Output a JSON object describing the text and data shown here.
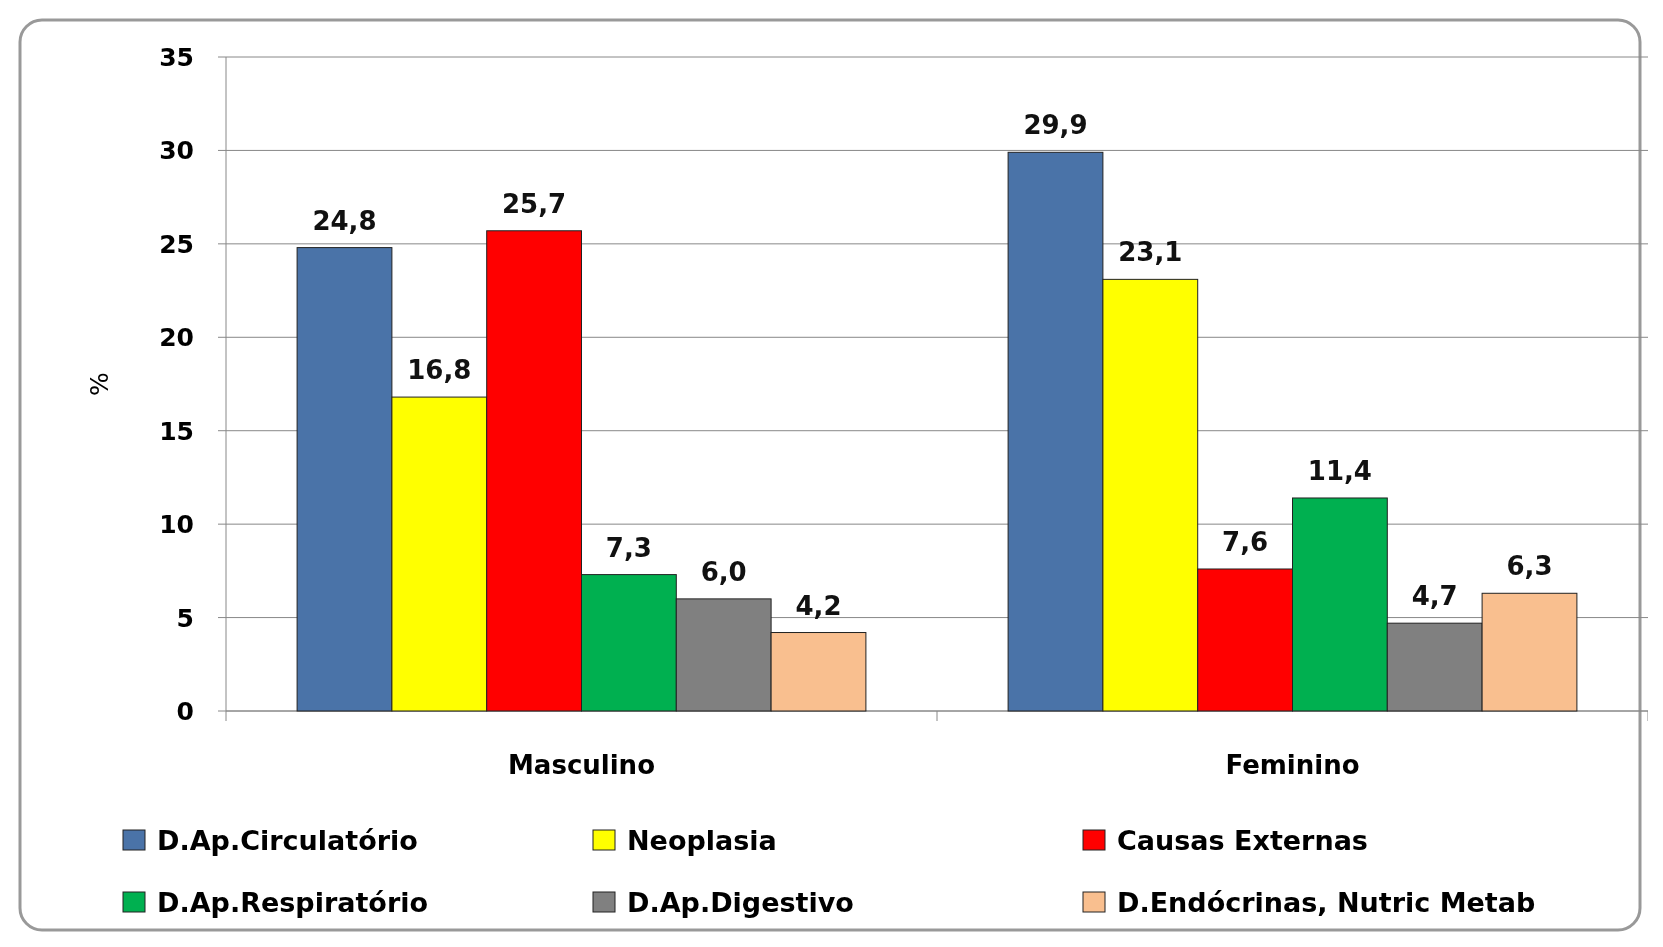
{
  "chart_data": {
    "type": "bar",
    "ylabel": "%",
    "categories": [
      "Masculino",
      "Feminino"
    ],
    "series": [
      {
        "name": "D.Ap.Circulatório",
        "color": "#4a73a8",
        "values": [
          24.8,
          29.9
        ],
        "value_labels": [
          "24,8",
          "29,9"
        ]
      },
      {
        "name": "Neoplasia",
        "color": "#ffff00",
        "values": [
          16.8,
          23.1
        ],
        "value_labels": [
          "16,8",
          "23,1"
        ]
      },
      {
        "name": "Causas Externas",
        "color": "#ff0000",
        "values": [
          25.7,
          7.6
        ],
        "value_labels": [
          "25,7",
          "7,6"
        ]
      },
      {
        "name": "D.Ap.Respiratório",
        "color": "#00b050",
        "values": [
          7.3,
          11.4
        ],
        "value_labels": [
          "7,3",
          "11,4"
        ]
      },
      {
        "name": "D.Ap.Digestivo",
        "color": "#808080",
        "values": [
          6.0,
          4.7
        ],
        "value_labels": [
          "6,0",
          "4,7"
        ]
      },
      {
        "name": "D.Endócrinas, Nutric Metab",
        "color": "#f9bf8f",
        "values": [
          4.2,
          6.3
        ],
        "value_labels": [
          "4,2",
          "6,3"
        ]
      }
    ],
    "ylim": [
      0,
      35
    ],
    "yticks": [
      0,
      5,
      10,
      15,
      20,
      25,
      30,
      35
    ],
    "grid": "y",
    "legend": "bottom"
  }
}
